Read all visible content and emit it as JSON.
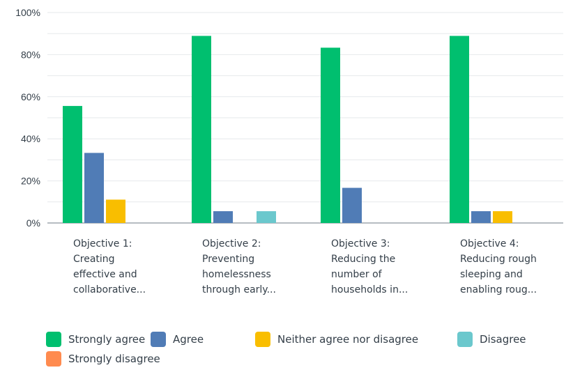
{
  "chart_data": {
    "type": "bar",
    "title": "",
    "xlabel": "",
    "ylabel": "",
    "ylim": [
      0,
      100
    ],
    "yticks": [
      0,
      20,
      40,
      60,
      80,
      100
    ],
    "ytick_format": "{v}%",
    "grid": true,
    "legend_position": "bottom",
    "categories": [
      [
        "Objective 1:",
        "Creating",
        "effective and",
        "collaborative..."
      ],
      [
        "Objective 2:",
        "Preventing",
        "homelessness",
        "through early..."
      ],
      [
        "Objective 3:",
        "Reducing the",
        "number of",
        "households in..."
      ],
      [
        "Objective 4:",
        "Reducing rough",
        "sleeping and",
        "enabling roug..."
      ]
    ],
    "series": [
      {
        "name": "Strongly agree",
        "color": "#00bf6f",
        "values": [
          55.6,
          88.9,
          83.3,
          88.9
        ]
      },
      {
        "name": "Agree",
        "color": "#507cb6",
        "values": [
          33.3,
          5.6,
          16.7,
          5.6
        ]
      },
      {
        "name": "Neither agree nor disagree",
        "color": "#f9be00",
        "values": [
          11.1,
          0,
          0,
          5.6
        ]
      },
      {
        "name": "Disagree",
        "color": "#6bc8cd",
        "values": [
          0,
          5.6,
          0,
          0
        ]
      },
      {
        "name": "Strongly disagree",
        "color": "#ff8b4f",
        "values": [
          0,
          0,
          0,
          0
        ]
      }
    ]
  }
}
